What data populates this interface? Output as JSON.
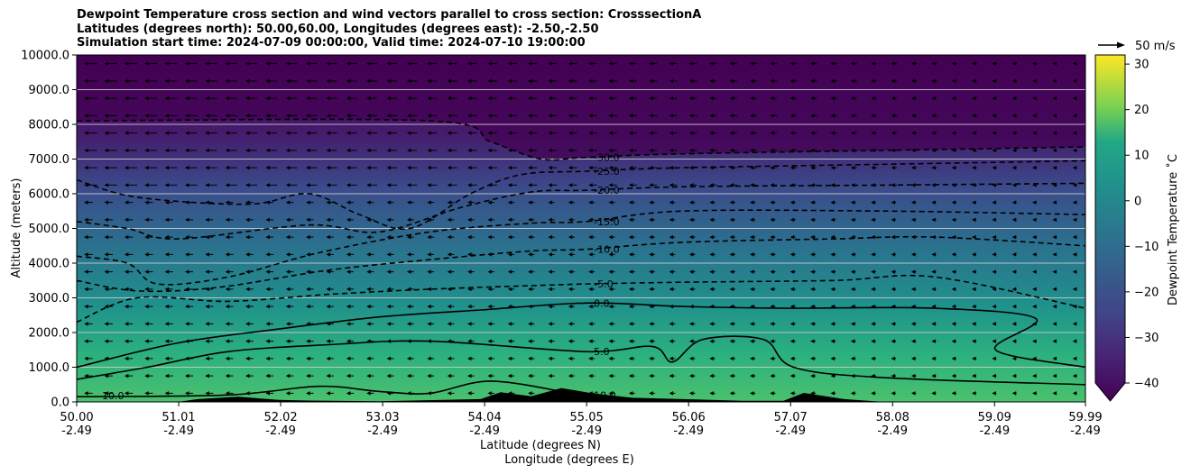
{
  "chart_data": {
    "type": "contour",
    "title_lines": [
      "Dewpoint Temperature cross section and wind vectors parallel to cross section: CrosssectionA",
      "Latitudes (degrees north): 50.00,60.00, Longitudes (degrees east): -2.50,-2.50",
      "Simulation start time: 2024-07-09 00:00:00, Valid time: 2024-07-10 19:00:00"
    ],
    "xlabel": "Latitude (degrees N)",
    "xlabel2": "Longitude (degrees E)",
    "ylabel": "Altitude (meters)",
    "xlim": [
      50.0,
      59.99
    ],
    "ylim": [
      0,
      10000
    ],
    "x_ticks": [
      {
        "lat": "50.00",
        "lon": "-2.49",
        "value": 50.0
      },
      {
        "lat": "51.01",
        "lon": "-2.49",
        "value": 51.01
      },
      {
        "lat": "52.02",
        "lon": "-2.49",
        "value": 52.02
      },
      {
        "lat": "53.03",
        "lon": "-2.49",
        "value": 53.03
      },
      {
        "lat": "54.04",
        "lon": "-2.49",
        "value": 54.04
      },
      {
        "lat": "55.05",
        "lon": "-2.49",
        "value": 55.05
      },
      {
        "lat": "56.06",
        "lon": "-2.49",
        "value": 56.06
      },
      {
        "lat": "57.07",
        "lon": "-2.49",
        "value": 57.07
      },
      {
        "lat": "58.08",
        "lon": "-2.49",
        "value": 58.08
      },
      {
        "lat": "59.09",
        "lon": "-2.49",
        "value": 59.09
      },
      {
        "lat": "59.99",
        "lon": "-2.49",
        "value": 59.99
      }
    ],
    "y_ticks": [
      0,
      1000,
      2000,
      3000,
      4000,
      5000,
      6000,
      7000,
      8000,
      9000,
      10000
    ],
    "y_tick_labels": [
      "0.0",
      "1000.0",
      "2000.0",
      "3000.0",
      "4000.0",
      "5000.0",
      "6000.0",
      "7000.0",
      "8000.0",
      "9000.0",
      "10000.0"
    ],
    "grid_horizontal": true,
    "colorbar": {
      "label": "Dewpoint Temperature ˚C",
      "vmin": -40,
      "vmax": 32,
      "extend": "min",
      "ticks": [
        -40,
        -30,
        -20,
        -10,
        0,
        10,
        20,
        30
      ],
      "tick_labels": [
        "−40",
        "−30",
        "−20",
        "−10",
        "0",
        "10",
        "20",
        "30"
      ],
      "colormap": "viridis"
    },
    "quiver_key": {
      "label": "50 m/s",
      "value": 50
    },
    "contours": [
      {
        "level": -30,
        "label": "-30.0",
        "style": "dashed",
        "points": [
          [
            50.0,
            8100
          ],
          [
            53.5,
            8100
          ],
          [
            54.1,
            7500
          ],
          [
            54.6,
            7000
          ],
          [
            55.05,
            7050
          ],
          [
            56.0,
            7150
          ],
          [
            58.0,
            7250
          ],
          [
            59.99,
            7350
          ]
        ]
      },
      {
        "level": -25,
        "label": "-25.0",
        "style": "dashed",
        "points": [
          [
            50.0,
            6400
          ],
          [
            50.6,
            5900
          ],
          [
            51.7,
            5700
          ],
          [
            52.3,
            6000
          ],
          [
            52.8,
            5400
          ],
          [
            53.3,
            5000
          ],
          [
            53.9,
            6000
          ],
          [
            54.4,
            6550
          ],
          [
            55.05,
            6650
          ],
          [
            56.0,
            6750
          ],
          [
            58.0,
            6850
          ],
          [
            59.99,
            6950
          ]
        ]
      },
      {
        "level": -20,
        "label": "-20.0",
        "style": "dashed",
        "points": [
          [
            50.0,
            5200
          ],
          [
            50.5,
            5000
          ],
          [
            51.0,
            4700
          ],
          [
            52.3,
            5100
          ],
          [
            53.0,
            4900
          ],
          [
            53.8,
            5600
          ],
          [
            54.5,
            6050
          ],
          [
            55.05,
            6100
          ],
          [
            56.0,
            6200
          ],
          [
            58.0,
            6250
          ],
          [
            59.99,
            6300
          ]
        ]
      },
      {
        "level": -15,
        "label": "-15.0",
        "style": "dashed",
        "points": [
          [
            50.0,
            4200
          ],
          [
            50.5,
            4000
          ],
          [
            50.8,
            3400
          ],
          [
            51.5,
            3600
          ],
          [
            52.4,
            4300
          ],
          [
            53.5,
            4900
          ],
          [
            54.5,
            5150
          ],
          [
            55.05,
            5200
          ],
          [
            56.0,
            5500
          ],
          [
            58.0,
            5500
          ],
          [
            59.99,
            5400
          ]
        ]
      },
      {
        "level": -10,
        "label": "-10.0",
        "style": "dashed",
        "points": [
          [
            50.0,
            3500
          ],
          [
            50.6,
            3200
          ],
          [
            51.4,
            3300
          ],
          [
            52.5,
            3800
          ],
          [
            53.5,
            4100
          ],
          [
            54.5,
            4350
          ],
          [
            55.05,
            4400
          ],
          [
            56.0,
            4600
          ],
          [
            57.5,
            4700
          ],
          [
            58.5,
            4750
          ],
          [
            59.99,
            4500
          ]
        ]
      },
      {
        "level": -5,
        "label": "-5.0",
        "style": "dashed",
        "points": [
          [
            50.0,
            2300
          ],
          [
            50.6,
            3000
          ],
          [
            51.5,
            2900
          ],
          [
            52.5,
            3100
          ],
          [
            53.5,
            3250
          ],
          [
            54.5,
            3350
          ],
          [
            55.05,
            3400
          ],
          [
            56.0,
            3450
          ],
          [
            57.5,
            3500
          ],
          [
            58.5,
            3600
          ],
          [
            59.99,
            2700
          ]
        ]
      },
      {
        "level": 0,
        "label": "0.0",
        "style": "solid",
        "points": [
          [
            50.0,
            1000
          ],
          [
            51.0,
            1700
          ],
          [
            52.0,
            2100
          ],
          [
            53.0,
            2450
          ],
          [
            54.0,
            2650
          ],
          [
            55.05,
            2850
          ],
          [
            56.0,
            2750
          ],
          [
            57.0,
            2700
          ],
          [
            58.5,
            2700
          ],
          [
            59.5,
            2400
          ],
          [
            59.1,
            1500
          ],
          [
            59.99,
            1000
          ]
        ]
      },
      {
        "level": 5,
        "label": "5.0",
        "style": "solid",
        "points": [
          [
            50.0,
            650
          ],
          [
            50.7,
            1000
          ],
          [
            51.5,
            1450
          ],
          [
            52.5,
            1650
          ],
          [
            53.5,
            1750
          ],
          [
            55.05,
            1450
          ],
          [
            55.7,
            1600
          ],
          [
            55.9,
            1150
          ],
          [
            56.2,
            1800
          ],
          [
            56.8,
            1800
          ],
          [
            57.1,
            1000
          ],
          [
            58.0,
            700
          ],
          [
            59.99,
            500
          ]
        ]
      },
      {
        "level": 10,
        "label": "10.0",
        "style": "solid",
        "points": [
          [
            50.0,
            150
          ],
          [
            51.5,
            200
          ],
          [
            52.4,
            450
          ],
          [
            53.0,
            300
          ],
          [
            53.5,
            250
          ],
          [
            54.1,
            600
          ],
          [
            54.9,
            250
          ],
          [
            55.05,
            200
          ]
        ]
      }
    ],
    "terrain_points": [
      [
        51.0,
        0
      ],
      [
        51.2,
        80
      ],
      [
        51.6,
        150
      ],
      [
        52.0,
        60
      ],
      [
        52.3,
        40
      ],
      [
        53.0,
        20
      ],
      [
        54.0,
        80
      ],
      [
        54.2,
        280
      ],
      [
        54.5,
        160
      ],
      [
        54.8,
        400
      ],
      [
        55.1,
        250
      ],
      [
        55.5,
        120
      ],
      [
        56.0,
        80
      ],
      [
        56.6,
        30
      ],
      [
        57.0,
        30
      ],
      [
        57.2,
        260
      ],
      [
        57.6,
        80
      ],
      [
        58.0,
        0
      ]
    ]
  }
}
